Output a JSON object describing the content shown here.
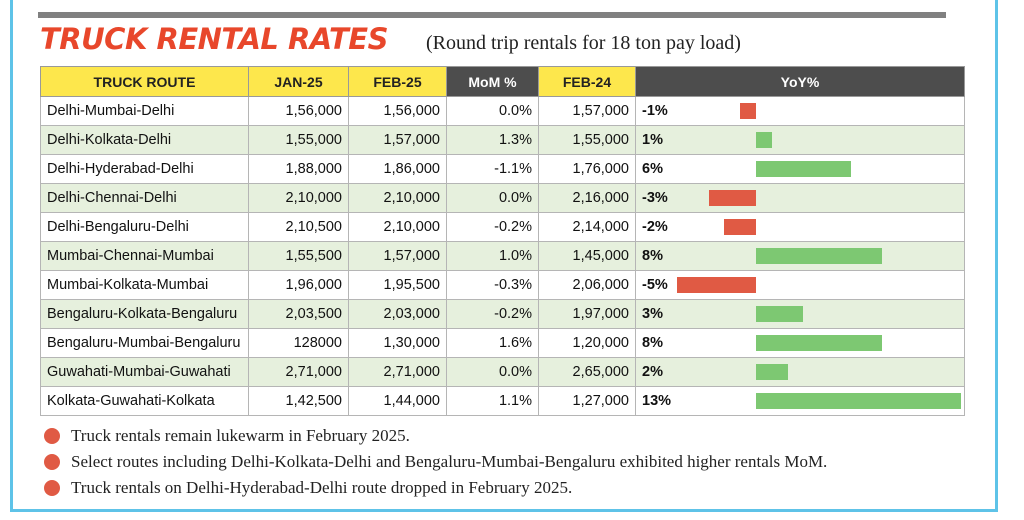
{
  "title": "TRUCK RENTAL RATES",
  "subtitle": "(Round trip rentals for 18 ton pay load)",
  "colors": {
    "title": "#e8472b",
    "header_yellow": "#fde74c",
    "header_dark": "#4d4d4d",
    "row_green": "#e6f0dd",
    "positive": "#7dc872",
    "negative": "#e05a44",
    "bullet": "#e05a44",
    "frame": "#5ec3e8"
  },
  "chart_data": {
    "type": "table",
    "columns": [
      "TRUCK ROUTE",
      "JAN-25",
      "FEB-25",
      "MoM %",
      "FEB-24",
      "YoY%"
    ],
    "rows": [
      {
        "route": "Delhi-Mumbai-Delhi",
        "jan25": "1,56,000",
        "feb25": "1,56,000",
        "mom": "0.0%",
        "feb24": "1,57,000",
        "yoy_label": "-1%",
        "yoy": -1
      },
      {
        "route": "Delhi-Kolkata-Delhi",
        "jan25": "1,55,000",
        "feb25": "1,57,000",
        "mom": "1.3%",
        "feb24": "1,55,000",
        "yoy_label": "1%",
        "yoy": 1
      },
      {
        "route": "Delhi-Hyderabad-Delhi",
        "jan25": "1,88,000",
        "feb25": "1,86,000",
        "mom": "-1.1%",
        "feb24": "1,76,000",
        "yoy_label": "6%",
        "yoy": 6
      },
      {
        "route": "Delhi-Chennai-Delhi",
        "jan25": "2,10,000",
        "feb25": "2,10,000",
        "mom": "0.0%",
        "feb24": "2,16,000",
        "yoy_label": "-3%",
        "yoy": -3
      },
      {
        "route": "Delhi-Bengaluru-Delhi",
        "jan25": "2,10,500",
        "feb25": "2,10,000",
        "mom": "-0.2%",
        "feb24": "2,14,000",
        "yoy_label": "-2%",
        "yoy": -2
      },
      {
        "route": "Mumbai-Chennai-Mumbai",
        "jan25": "1,55,500",
        "feb25": "1,57,000",
        "mom": "1.0%",
        "feb24": "1,45,000",
        "yoy_label": "8%",
        "yoy": 8
      },
      {
        "route": "Mumbai-Kolkata-Mumbai",
        "jan25": "1,96,000",
        "feb25": "1,95,500",
        "mom": "-0.3%",
        "feb24": "2,06,000",
        "yoy_label": "-5%",
        "yoy": -5
      },
      {
        "route": "Bengaluru-Kolkata-Bengaluru",
        "jan25": "2,03,500",
        "feb25": "2,03,000",
        "mom": "-0.2%",
        "feb24": "1,97,000",
        "yoy_label": "3%",
        "yoy": 3
      },
      {
        "route": "Bengaluru-Mumbai-Bengaluru",
        "jan25": "128000",
        "feb25": "1,30,000",
        "mom": "1.6%",
        "feb24": "1,20,000",
        "yoy_label": "8%",
        "yoy": 8
      },
      {
        "route": "Guwahati-Mumbai-Guwahati",
        "jan25": "2,71,000",
        "feb25": "2,71,000",
        "mom": "0.0%",
        "feb24": "2,65,000",
        "yoy_label": "2%",
        "yoy": 2
      },
      {
        "route": "Kolkata-Guwahati-Kolkata",
        "jan25": "1,42,500",
        "feb25": "1,44,000",
        "mom": "1.1%",
        "feb24": "1,27,000",
        "yoy_label": "13%",
        "yoy": 13
      }
    ]
  },
  "notes": [
    "Truck rentals remain lukewarm in February 2025.",
    "Select routes including Delhi-Kolkata-Delhi and Bengaluru-Mumbai-Bengaluru exhibited higher rentals MoM.",
    "Truck rentals on Delhi-Hyderabad-Delhi route dropped in February 2025."
  ]
}
